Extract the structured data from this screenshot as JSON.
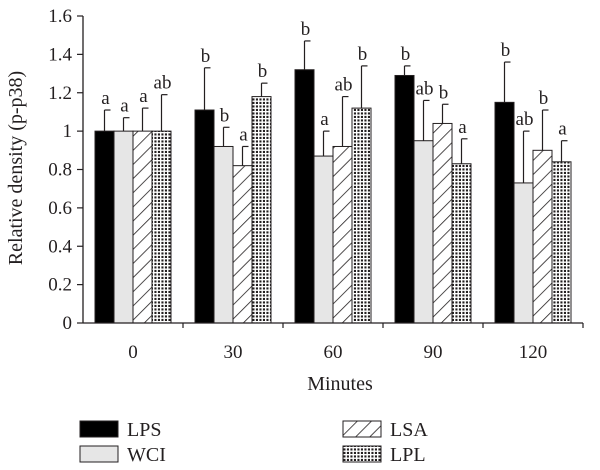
{
  "chart_data": {
    "type": "bar",
    "xlabel": "Minutes",
    "ylabel": "Relative density (p-p38)",
    "ylim": [
      0,
      1.6
    ],
    "yticks": [
      "0",
      "0.2",
      "0.4",
      "0.6",
      "0.8",
      "1",
      "1.2",
      "1.4",
      "1.6"
    ],
    "categories": [
      "0",
      "30",
      "60",
      "90",
      "120"
    ],
    "grid": false,
    "legend_placement": "bottom",
    "series": [
      {
        "name": "LPS",
        "fill": "black",
        "values": [
          1.0,
          1.11,
          1.32,
          1.29,
          1.15
        ],
        "errors": [
          0.11,
          0.22,
          0.15,
          0.05,
          0.21
        ],
        "labels": [
          "a",
          "b",
          "b",
          "b",
          "b"
        ]
      },
      {
        "name": "WCI",
        "fill": "lightgray",
        "values": [
          1.0,
          0.92,
          0.87,
          0.95,
          0.73
        ],
        "errors": [
          0.07,
          0.1,
          0.13,
          0.21,
          0.27
        ],
        "labels": [
          "a",
          "b",
          "a",
          "ab",
          "ab"
        ]
      },
      {
        "name": "LSA",
        "fill": "hatch",
        "values": [
          1.0,
          0.82,
          0.92,
          1.04,
          0.9
        ],
        "errors": [
          0.12,
          0.1,
          0.26,
          0.1,
          0.21
        ],
        "labels": [
          "a",
          "a",
          "ab",
          "b",
          "b"
        ]
      },
      {
        "name": "LPL",
        "fill": "dots",
        "values": [
          1.0,
          1.18,
          1.12,
          0.83,
          0.84
        ],
        "errors": [
          0.19,
          0.07,
          0.22,
          0.13,
          0.11
        ],
        "labels": [
          "ab",
          "b",
          "b",
          "a",
          "a"
        ]
      }
    ]
  },
  "colors": {
    "axis": "#231f20",
    "lps": "#000000",
    "wci": "#e6e6e6",
    "bar_outline": "#231f20"
  }
}
